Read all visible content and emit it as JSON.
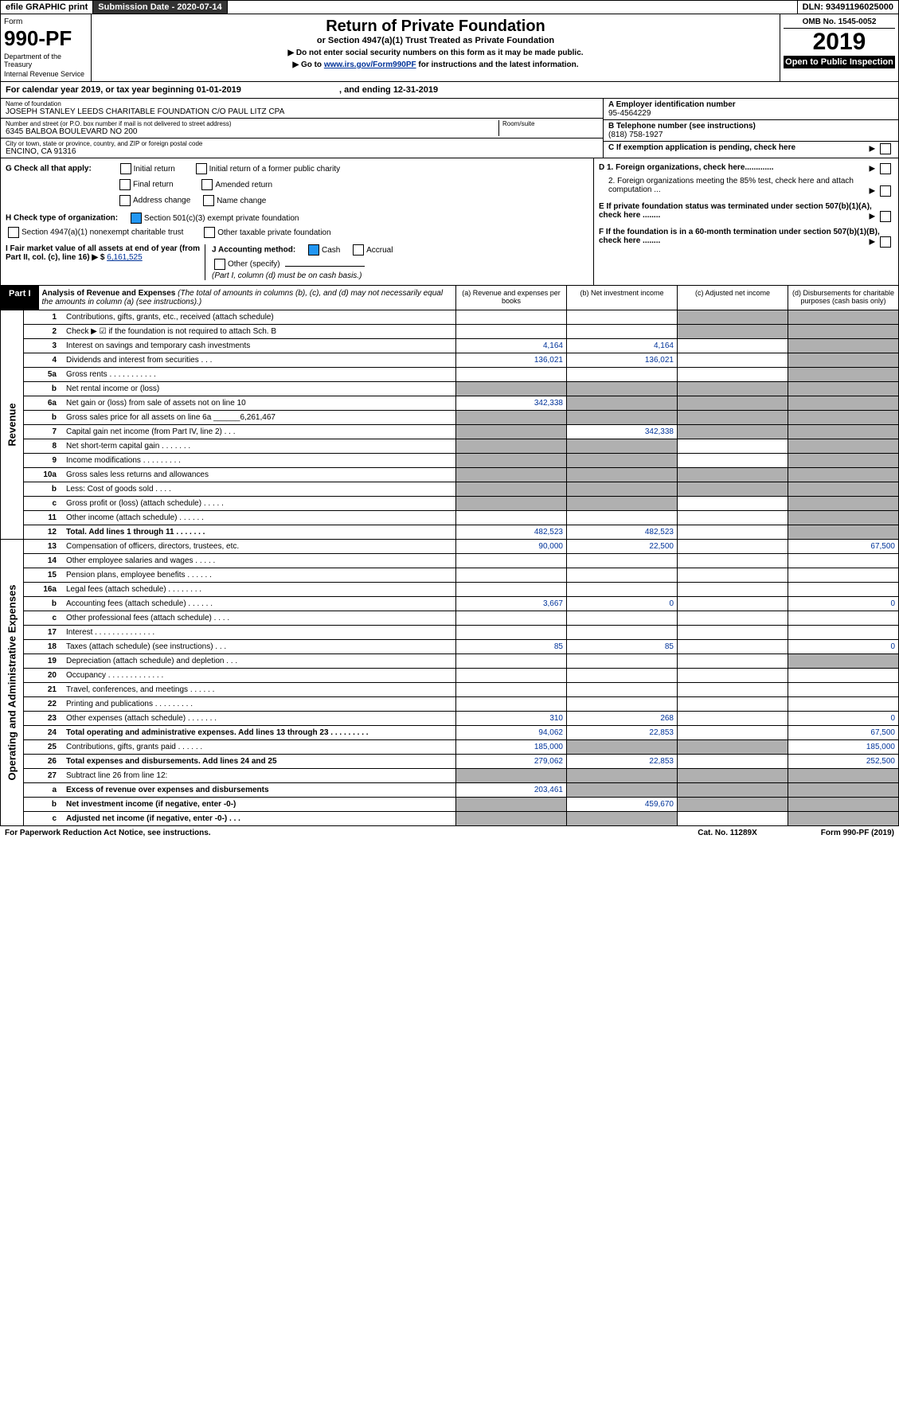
{
  "topbar": {
    "efile": "efile GRAPHIC print",
    "subdate_lbl": "Submission Date - 2020-07-14",
    "dln": "DLN: 93491196025000"
  },
  "header": {
    "form_lbl": "Form",
    "form_no": "990-PF",
    "dept1": "Department of the Treasury",
    "dept2": "Internal Revenue Service",
    "title": "Return of Private Foundation",
    "subtitle": "or Section 4947(a)(1) Trust Treated as Private Foundation",
    "note1": "▶ Do not enter social security numbers on this form as it may be made public.",
    "note2": "▶ Go to",
    "note2_link": "www.irs.gov/Form990PF",
    "note2_end": "for instructions and the latest information.",
    "omb": "OMB No. 1545-0052",
    "year": "2019",
    "open": "Open to Public Inspection"
  },
  "calyear": {
    "text1": "For calendar year 2019, or tax year beginning 01-01-2019",
    "text2": ", and ending 12-31-2019"
  },
  "entity": {
    "name_lbl": "Name of foundation",
    "name": "JOSEPH STANLEY LEEDS CHARITABLE FOUNDATION C/O PAUL LITZ CPA",
    "addr_lbl": "Number and street (or P.O. box number if mail is not delivered to street address)",
    "addr": "6345 BALBOA BOULEVARD NO 200",
    "room_lbl": "Room/suite",
    "city_lbl": "City or town, state or province, country, and ZIP or foreign postal code",
    "city": "ENCINO, CA  91316",
    "ein_lbl": "A Employer identification number",
    "ein": "95-4564229",
    "tel_lbl": "B Telephone number (see instructions)",
    "tel": "(818) 758-1927",
    "c_lbl": "C If exemption application is pending, check here"
  },
  "checks": {
    "g_lbl": "G Check all that apply:",
    "g1": "Initial return",
    "g2": "Initial return of a former public charity",
    "g3": "Final return",
    "g4": "Amended return",
    "g5": "Address change",
    "g6": "Name change",
    "h_lbl": "H Check type of organization:",
    "h1": "Section 501(c)(3) exempt private foundation",
    "h2": "Section 4947(a)(1) nonexempt charitable trust",
    "h3": "Other taxable private foundation",
    "i_lbl": "I Fair market value of all assets at end of year (from Part II, col. (c), line 16) ▶ $",
    "i_val": "6,161,525",
    "j_lbl": "J Accounting method:",
    "j1": "Cash",
    "j2": "Accrual",
    "j3": "Other (specify)",
    "j_note": "(Part I, column (d) must be on cash basis.)",
    "d1": "D 1. Foreign organizations, check here.............",
    "d2": "2. Foreign organizations meeting the 85% test, check here and attach computation ...",
    "e_lbl": "E  If private foundation status was terminated under section 507(b)(1)(A), check here ........",
    "f_lbl": "F  If the foundation is in a 60-month termination under section 507(b)(1)(B), check here ........"
  },
  "part1": {
    "num": "Part I",
    "title": "Analysis of Revenue and Expenses",
    "titlenote": "(The total of amounts in columns (b), (c), and (d) may not necessarily equal the amounts in column (a) (see instructions).)",
    "cola": "(a)   Revenue and expenses per books",
    "colb": "(b)  Net investment income",
    "colc": "(c)  Adjusted net income",
    "cold": "(d)  Disbursements for charitable purposes (cash basis only)"
  },
  "side1": "Revenue",
  "side2": "Operating and Administrative Expenses",
  "rows": [
    {
      "n": "1",
      "d": "Contributions, gifts, grants, etc., received (attach schedule)",
      "a": "",
      "b": "",
      "c": "g",
      "dd": "g"
    },
    {
      "n": "2",
      "d": "Check ▶ ☑ if the foundation is not required to attach Sch. B",
      "a": "",
      "b": "",
      "c": "g",
      "dd": "g",
      "nob": true
    },
    {
      "n": "3",
      "d": "Interest on savings and temporary cash investments",
      "a": "4,164",
      "b": "4,164",
      "c": "",
      "dd": "g"
    },
    {
      "n": "4",
      "d": "Dividends and interest from securities   .   .   .",
      "a": "136,021",
      "b": "136,021",
      "c": "",
      "dd": "g"
    },
    {
      "n": "5a",
      "d": "Gross rents    .   .   .   .   .   .   .   .   .   .   .",
      "a": "",
      "b": "",
      "c": "",
      "dd": "g"
    },
    {
      "n": "b",
      "d": "Net rental income or (loss)",
      "a": "g",
      "b": "g",
      "c": "g",
      "dd": "g"
    },
    {
      "n": "6a",
      "d": "Net gain or (loss) from sale of assets not on line 10",
      "a": "342,338",
      "b": "g",
      "c": "g",
      "dd": "g"
    },
    {
      "n": "b",
      "d": "Gross sales price for all assets on line 6a ______6,261,467",
      "a": "g",
      "b": "g",
      "c": "g",
      "dd": "g"
    },
    {
      "n": "7",
      "d": "Capital gain net income (from Part IV, line 2)   .   .   .",
      "a": "g",
      "b": "342,338",
      "c": "g",
      "dd": "g"
    },
    {
      "n": "8",
      "d": "Net short-term capital gain   .   .   .   .   .   .   .",
      "a": "g",
      "b": "g",
      "c": "",
      "dd": "g"
    },
    {
      "n": "9",
      "d": "Income modifications   .   .   .   .   .   .   .   .   .",
      "a": "g",
      "b": "g",
      "c": "",
      "dd": "g"
    },
    {
      "n": "10a",
      "d": "Gross sales less returns and allowances",
      "a": "g",
      "b": "g",
      "c": "g",
      "dd": "g"
    },
    {
      "n": "b",
      "d": "Less: Cost of goods sold   .   .   .   .",
      "a": "g",
      "b": "g",
      "c": "g",
      "dd": "g"
    },
    {
      "n": "c",
      "d": "Gross profit or (loss) (attach schedule)   .   .   .   .   .",
      "a": "g",
      "b": "g",
      "c": "",
      "dd": "g"
    },
    {
      "n": "11",
      "d": "Other income (attach schedule)   .   .   .   .   .   .",
      "a": "",
      "b": "",
      "c": "",
      "dd": "g"
    },
    {
      "n": "12",
      "d": "Total. Add lines 1 through 11   .   .   .   .   .   .   .",
      "a": "482,523",
      "b": "482,523",
      "c": "",
      "dd": "g",
      "bold": true
    }
  ],
  "rows2": [
    {
      "n": "13",
      "d": "Compensation of officers, directors, trustees, etc.",
      "a": "90,000",
      "b": "22,500",
      "c": "",
      "dd": "67,500"
    },
    {
      "n": "14",
      "d": "Other employee salaries and wages   .   .   .   .   .",
      "a": "",
      "b": "",
      "c": "",
      "dd": ""
    },
    {
      "n": "15",
      "d": "Pension plans, employee benefits   .   .   .   .   .   .",
      "a": "",
      "b": "",
      "c": "",
      "dd": ""
    },
    {
      "n": "16a",
      "d": "Legal fees (attach schedule)   .   .   .   .   .   .   .   .",
      "a": "",
      "b": "",
      "c": "",
      "dd": ""
    },
    {
      "n": "b",
      "d": "Accounting fees (attach schedule)   .   .   .   .   .   .",
      "a": "3,667",
      "b": "0",
      "c": "",
      "dd": "0"
    },
    {
      "n": "c",
      "d": "Other professional fees (attach schedule)   .   .   .   .",
      "a": "",
      "b": "",
      "c": "",
      "dd": ""
    },
    {
      "n": "17",
      "d": "Interest   .   .   .   .   .   .   .   .   .   .   .   .   .   .",
      "a": "",
      "b": "",
      "c": "",
      "dd": ""
    },
    {
      "n": "18",
      "d": "Taxes (attach schedule) (see instructions)   .   .   .",
      "a": "85",
      "b": "85",
      "c": "",
      "dd": "0"
    },
    {
      "n": "19",
      "d": "Depreciation (attach schedule) and depletion   .   .   .",
      "a": "",
      "b": "",
      "c": "",
      "dd": "g"
    },
    {
      "n": "20",
      "d": "Occupancy   .   .   .   .   .   .   .   .   .   .   .   .   .",
      "a": "",
      "b": "",
      "c": "",
      "dd": ""
    },
    {
      "n": "21",
      "d": "Travel, conferences, and meetings   .   .   .   .   .   .",
      "a": "",
      "b": "",
      "c": "",
      "dd": ""
    },
    {
      "n": "22",
      "d": "Printing and publications   .   .   .   .   .   .   .   .   .",
      "a": "",
      "b": "",
      "c": "",
      "dd": ""
    },
    {
      "n": "23",
      "d": "Other expenses (attach schedule)   .   .   .   .   .   .   .",
      "a": "310",
      "b": "268",
      "c": "",
      "dd": "0"
    },
    {
      "n": "24",
      "d": "Total operating and administrative expenses. Add lines 13 through 23   .   .   .   .   .   .   .   .   .",
      "a": "94,062",
      "b": "22,853",
      "c": "",
      "dd": "67,500",
      "bold": true
    },
    {
      "n": "25",
      "d": "Contributions, gifts, grants paid   .   .   .   .   .   .",
      "a": "185,000",
      "b": "g",
      "c": "g",
      "dd": "185,000"
    },
    {
      "n": "26",
      "d": "Total expenses and disbursements. Add lines 24 and 25",
      "a": "279,062",
      "b": "22,853",
      "c": "",
      "dd": "252,500",
      "bold": true
    },
    {
      "n": "27",
      "d": "Subtract line 26 from line 12:",
      "a": "g",
      "b": "g",
      "c": "g",
      "dd": "g"
    },
    {
      "n": "a",
      "d": "Excess of revenue over expenses and disbursements",
      "a": "203,461",
      "b": "g",
      "c": "g",
      "dd": "g",
      "bold": true
    },
    {
      "n": "b",
      "d": "Net investment income (if negative, enter -0-)",
      "a": "g",
      "b": "459,670",
      "c": "g",
      "dd": "g",
      "bold": true
    },
    {
      "n": "c",
      "d": "Adjusted net income (if negative, enter -0-)   .   .   .",
      "a": "g",
      "b": "g",
      "c": "",
      "dd": "g",
      "bold": true
    }
  ],
  "footer": {
    "left": "For Paperwork Reduction Act Notice, see instructions.",
    "mid": "Cat. No. 11289X",
    "right": "Form 990-PF (2019)"
  }
}
